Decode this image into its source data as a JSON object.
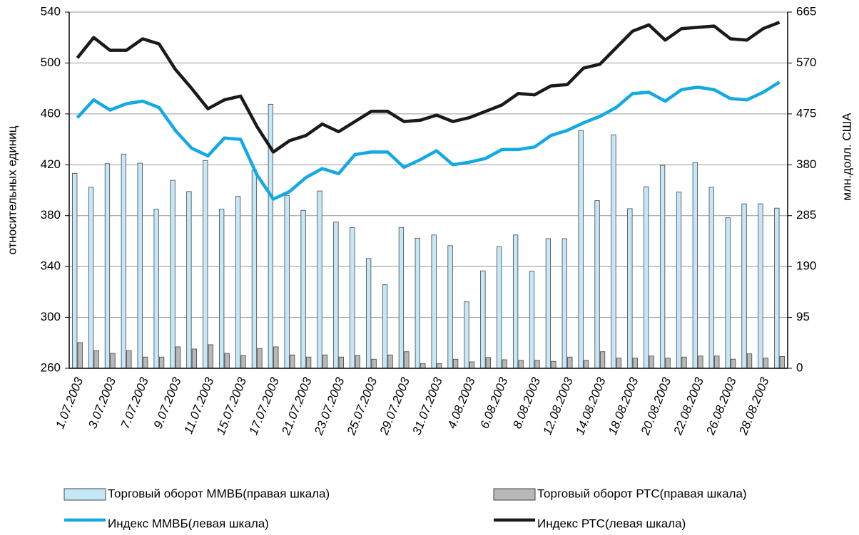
{
  "chart_data": {
    "type": "bar-line",
    "y_label": "относительных единиц",
    "y2_label": "млн.долл. США",
    "categories": [
      "1.07.2003",
      null,
      "3.07.2003",
      null,
      "7.07.2003",
      null,
      "9.07.2003",
      null,
      "11.07.2003",
      null,
      "15.07.2003",
      null,
      "17.07.2003",
      null,
      "21.07.2003",
      null,
      "23.07.2003",
      null,
      "25.07.2003",
      null,
      "29.07.2003",
      null,
      "31.07.2003",
      null,
      "4.08.2003",
      null,
      "6.08.2003",
      null,
      "8.08.2003",
      null,
      "12.08.2003",
      null,
      "14.08.2003",
      null,
      "18.08.2003",
      null,
      "20.08.2003",
      null,
      "22.08.2003",
      null,
      "26.08.2003",
      null,
      "28.08.2003",
      null
    ],
    "series": [
      {
        "name": "Торговый оборот ММВБ(правая шкала)",
        "kind": "bar",
        "axis": "y2",
        "color": "#c4e8f8",
        "values": [
          364,
          338,
          382,
          400,
          383,
          297,
          351,
          330,
          388,
          297,
          321,
          370,
          493,
          323,
          295,
          331,
          273,
          263,
          205,
          156,
          263,
          243,
          249,
          229,
          124,
          182,
          227,
          249,
          181,
          242,
          242,
          444,
          313,
          436,
          298,
          339,
          379,
          329,
          384,
          338,
          281,
          307,
          307,
          299
        ]
      },
      {
        "name": "Торговый оборот РТС(правая шкала)",
        "kind": "bar",
        "axis": "y2",
        "color": "#b8b8b8",
        "values": [
          48,
          33,
          28,
          33,
          21,
          21,
          40,
          36,
          44,
          28,
          24,
          37,
          40,
          25,
          21,
          25,
          21,
          24,
          17,
          25,
          31,
          9,
          9,
          17,
          12,
          20,
          16,
          15,
          15,
          13,
          21,
          15,
          31,
          19,
          19,
          23,
          19,
          21,
          23,
          23,
          17,
          27,
          19,
          22
        ]
      },
      {
        "name": "Индекс ММВБ(левая шкала)",
        "kind": "line",
        "color": "#12a9e4",
        "values": [
          457,
          471,
          463,
          468,
          470,
          465,
          447,
          433,
          427,
          441,
          440,
          412,
          393,
          399,
          410,
          417,
          413,
          428,
          430,
          430,
          418,
          424,
          431,
          420,
          422,
          425,
          432,
          432,
          434,
          443,
          447,
          453,
          458,
          465,
          476,
          477,
          470,
          479,
          481,
          479,
          472,
          471,
          477,
          485
        ]
      },
      {
        "name": "Индекс РТС(левая шкала)",
        "kind": "line",
        "color": "#1a1a1a",
        "values": [
          504,
          520,
          510,
          510,
          519,
          515,
          495,
          480,
          464,
          471,
          474,
          450,
          430,
          439,
          443,
          452,
          446,
          454,
          462,
          462,
          454,
          455,
          459,
          454,
          457,
          462,
          467,
          476,
          475,
          482,
          483,
          496,
          499,
          512,
          525,
          530,
          518,
          527,
          528,
          529,
          519,
          518,
          527,
          532
        ]
      }
    ],
    "ylim": [
      260,
      540
    ],
    "yticks": [
      260,
      300,
      340,
      380,
      420,
      460,
      500,
      540
    ],
    "y2lim": [
      0,
      665
    ],
    "y2ticks": [
      0,
      95,
      190,
      285,
      380,
      475,
      570,
      665
    ],
    "grid": true
  }
}
